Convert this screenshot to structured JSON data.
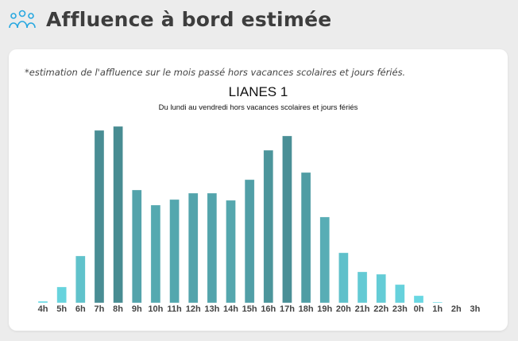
{
  "header": {
    "title": "Affluence à bord estimée",
    "icon": "people-group-icon"
  },
  "card": {
    "note": "*estimation de l'affluence sur le mois passé hors vacances scolaires et jours fériés."
  },
  "chart_data": {
    "type": "bar",
    "title": "LIANES 1",
    "subtitle": "Du lundi au vendredi hors vacances scolaires et jours fériés",
    "xlabel": "",
    "ylabel": "",
    "categories": [
      "4h",
      "5h",
      "6h",
      "7h",
      "8h",
      "9h",
      "10h",
      "11h",
      "12h",
      "13h",
      "14h",
      "15h",
      "16h",
      "17h",
      "18h",
      "19h",
      "20h",
      "21h",
      "22h",
      "23h",
      "0h",
      "1h",
      "2h",
      "3h"
    ],
    "values": [
      2,
      20,
      59,
      217,
      222,
      142,
      123,
      130,
      138,
      138,
      129,
      155,
      192,
      210,
      164,
      108,
      63,
      39,
      36,
      23,
      9,
      1,
      0,
      0
    ],
    "ylim": [
      0,
      222
    ],
    "grid": false,
    "colors": {
      "low": "#6adbe6",
      "mid": "#57acb4",
      "high": "#488c92"
    }
  }
}
